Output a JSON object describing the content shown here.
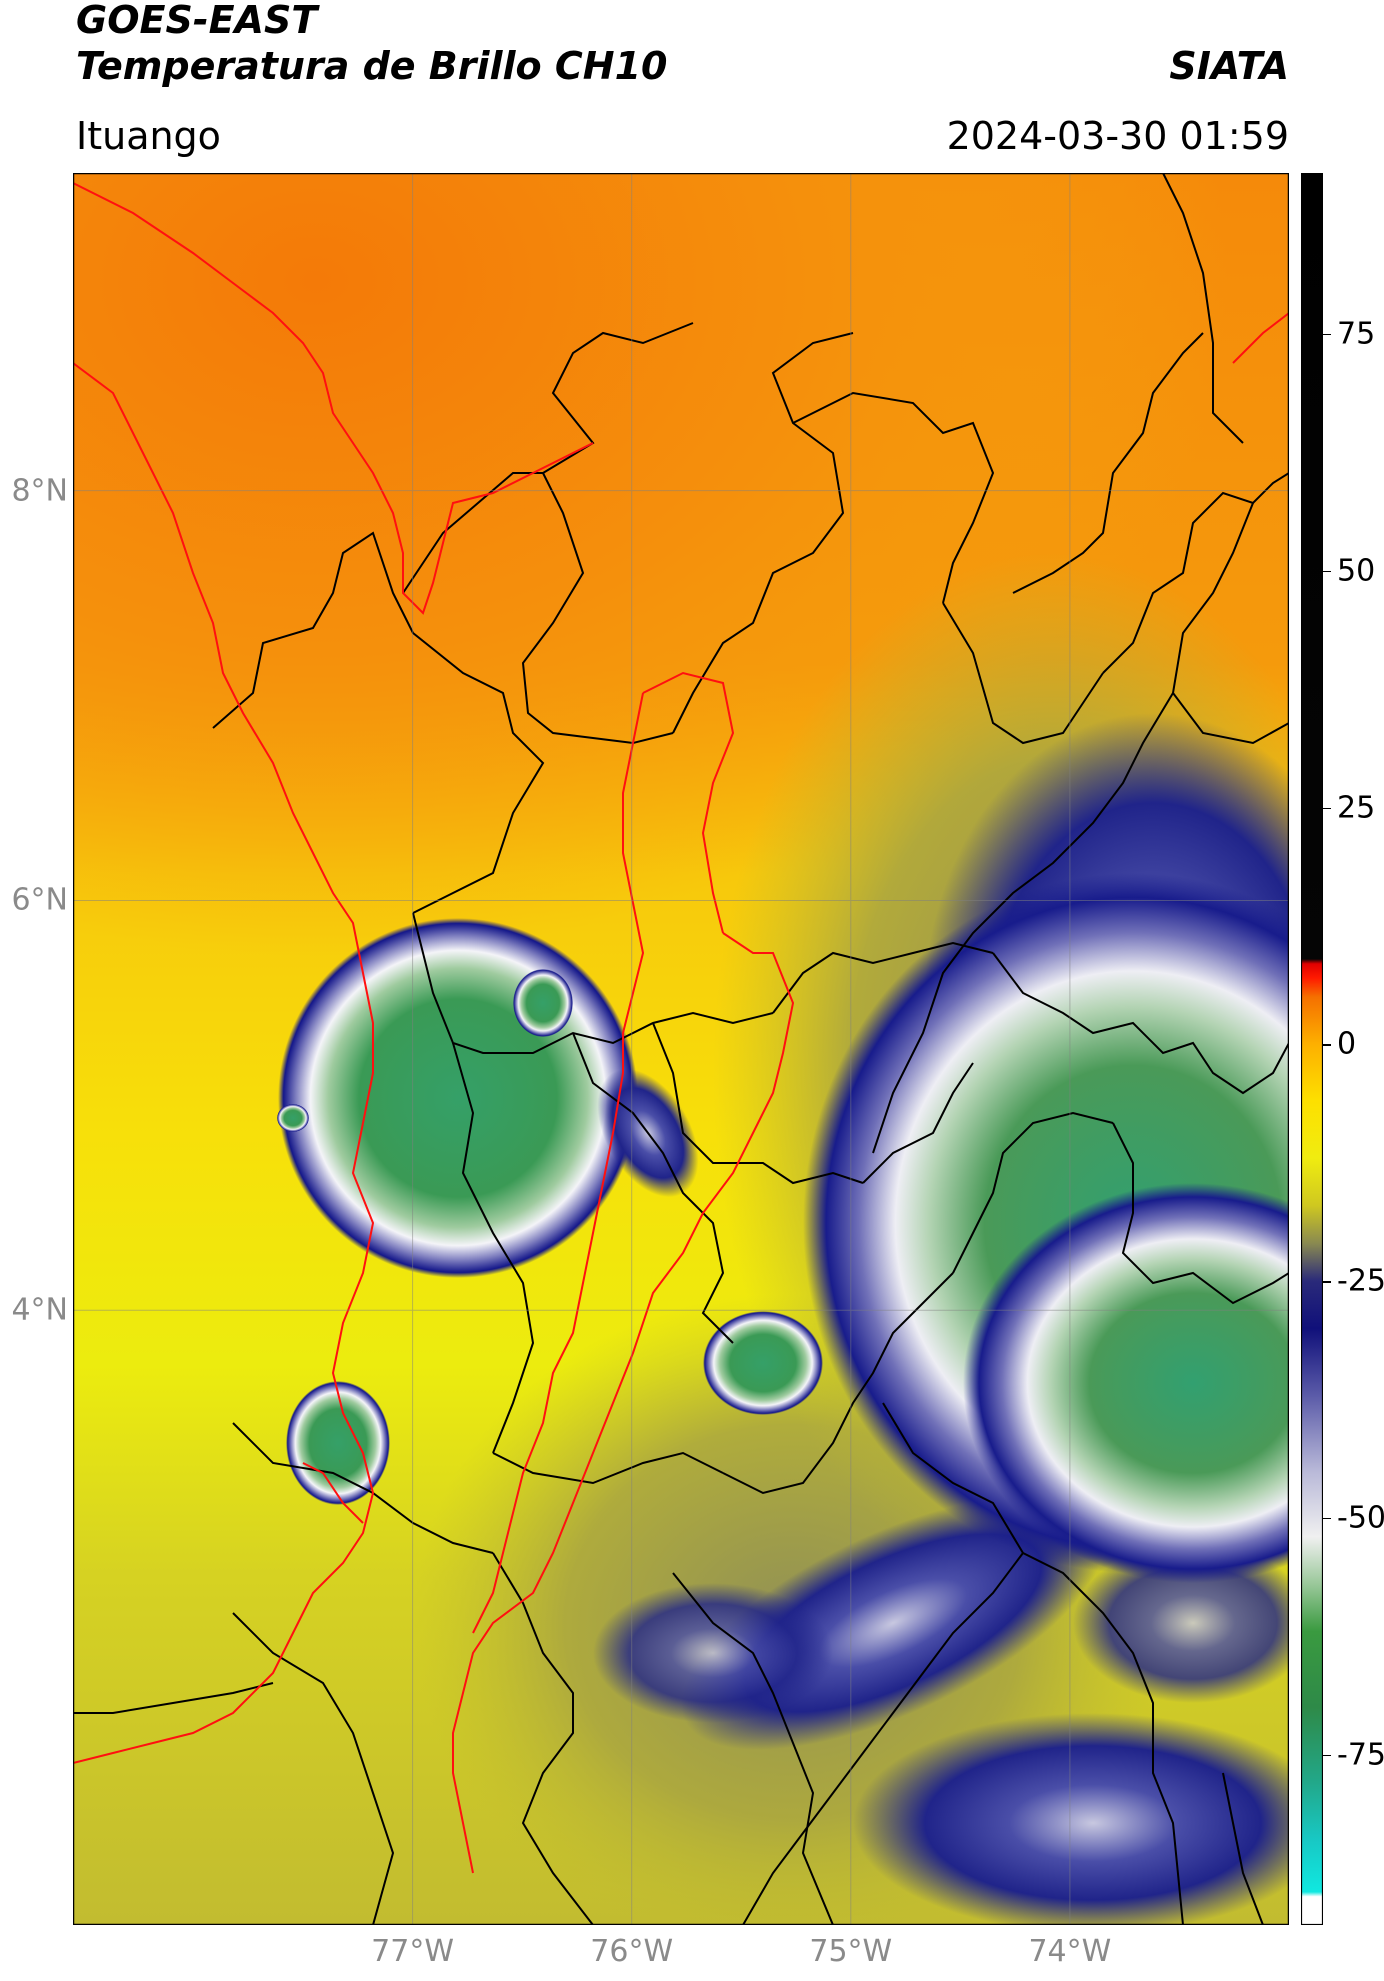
{
  "header": {
    "satellite": "GOES-EAST",
    "product": "Temperatura de Brillo CH10",
    "organization": "SIATA",
    "region": "Ituango",
    "timestamp": "2024-03-30 01:59"
  },
  "map": {
    "lon_ticks": [
      {
        "value": -77,
        "label": "77°W"
      },
      {
        "value": -76,
        "label": "76°W"
      },
      {
        "value": -75,
        "label": "75°W"
      },
      {
        "value": -74,
        "label": "74°W"
      }
    ],
    "lat_ticks": [
      {
        "value": 8,
        "label": "8°N"
      },
      {
        "value": 6,
        "label": "6°N"
      },
      {
        "value": 4,
        "label": "4°N"
      }
    ],
    "lon_range": [
      -78.55,
      -73.0
    ],
    "lat_range": [
      1.0,
      9.55
    ],
    "grid": true,
    "colors": {
      "warm": "#f58a0a",
      "mid": "#f7e80a",
      "olive": "#c8c22a",
      "storm_edge": "#1a1f8c",
      "storm_white": "#f2f2f6",
      "storm_core": "#2e9a5e",
      "border_black": "#000000",
      "border_red": "#ff1010"
    }
  },
  "colorbar": {
    "ticks": [
      {
        "value": 75,
        "label": "75"
      },
      {
        "value": 50,
        "label": "50"
      },
      {
        "value": 25,
        "label": "25"
      },
      {
        "value": 0,
        "label": "0"
      },
      {
        "value": -25,
        "label": "-25"
      },
      {
        "value": -50,
        "label": "-50"
      },
      {
        "value": -75,
        "label": "-75"
      }
    ],
    "range": [
      -93,
      92
    ],
    "stops": [
      {
        "value": -93,
        "color": "#ffffff"
      },
      {
        "value": -90,
        "color": "#ffffff"
      },
      {
        "value": -89.5,
        "color": "#10e8e0"
      },
      {
        "value": -84,
        "color": "#18c8c4"
      },
      {
        "value": -78,
        "color": "#22a88a"
      },
      {
        "value": -70,
        "color": "#2e8a48"
      },
      {
        "value": -62,
        "color": "#3a9a40"
      },
      {
        "value": -57,
        "color": "#9ac89a"
      },
      {
        "value": -52,
        "color": "#f0f0f0"
      },
      {
        "value": -45,
        "color": "#b8b8d8"
      },
      {
        "value": -37,
        "color": "#5a5aa8"
      },
      {
        "value": -30,
        "color": "#10107a"
      },
      {
        "value": -25,
        "color": "#2a2a7a"
      },
      {
        "value": -21,
        "color": "#8a8a50"
      },
      {
        "value": -17,
        "color": "#cfc820"
      },
      {
        "value": -12,
        "color": "#f0ec10"
      },
      {
        "value": -6,
        "color": "#fde000"
      },
      {
        "value": 0,
        "color": "#fdb000"
      },
      {
        "value": 5,
        "color": "#f57000"
      },
      {
        "value": 7,
        "color": "#ff1a00"
      },
      {
        "value": 8.5,
        "color": "#e00000"
      },
      {
        "value": 9,
        "color": "#050505"
      },
      {
        "value": 92,
        "color": "#000000"
      }
    ]
  }
}
